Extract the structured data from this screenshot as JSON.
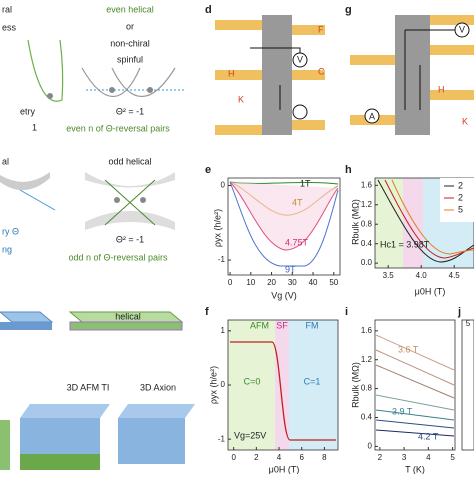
{
  "panel_a": {
    "row1": {
      "left": [
        "ral",
        "ess",
        "etry",
        "1"
      ],
      "title": "even helical",
      "or": "or",
      "alt": "non-chiral",
      "alt2": "spinful",
      "relation": "Θ² = -1",
      "note": "even n of Θ-reversal pairs"
    },
    "row2": {
      "left": [
        "al",
        "ry Θ",
        "ng"
      ],
      "title": "odd helical",
      "relation": "Θ² = -1",
      "note": "odd n of Θ-reversal pairs"
    },
    "row3": {
      "title": "helical"
    },
    "row4": {
      "left": "3D AFM TI",
      "right": "3D Axion"
    }
  },
  "panel_d": {
    "label": "d",
    "F": "F",
    "V": "V",
    "H": "H",
    "C": "C",
    "K": "K"
  },
  "panel_g": {
    "label": "g",
    "V": "V",
    "H": "H",
    "A": "A",
    "K": "K"
  },
  "panel_e": {
    "label": "e",
    "annotations": [
      "1T",
      "4T",
      "4.75T",
      "9T"
    ],
    "ylabel": "ρyx (h/e²)",
    "xlabel": "Vg (V)",
    "yticks": [
      0,
      -1
    ],
    "xticks": [
      0,
      10,
      20,
      30,
      40,
      50
    ]
  },
  "panel_h": {
    "label": "h",
    "legend": [
      "2",
      "2",
      "5"
    ],
    "annotation": "Hc1 = 3.98T",
    "ylabel": "Rbulk (MΩ)",
    "xlabel": "μ0H (T)",
    "yticks": [
      1.6,
      1.2,
      0.8,
      0.4,
      {
        "value": 0,
        "label": "0.0"
      }
    ],
    "xticks": [
      3.5,
      {
        "value": 4,
        "label": "4.0"
      },
      4.5
    ]
  },
  "panel_f": {
    "label": "f",
    "regions": [
      "AFM",
      "SF",
      "FM"
    ],
    "chern": [
      "C=0",
      "C=1"
    ],
    "annotation": "Vg=25V",
    "ylabel": "ρyx (h/e²)",
    "xlabel": "μ0H (T)",
    "yticks": [
      1,
      0,
      -1
    ],
    "xticks": [
      0,
      2,
      4,
      6,
      8
    ]
  },
  "panel_i": {
    "label": "i",
    "annotations": [
      "3.6 T",
      "3.9 T",
      "4.2 T"
    ],
    "ylabel": "Rbulk (MΩ)",
    "xlabel": "T (K)",
    "yticks": [
      1.6,
      1.2,
      0.8,
      0.4,
      0
    ],
    "xticks": [
      2,
      3,
      4,
      5
    ]
  },
  "panel_j": {
    "label": "j",
    "yticks": [
      5
    ]
  }
}
